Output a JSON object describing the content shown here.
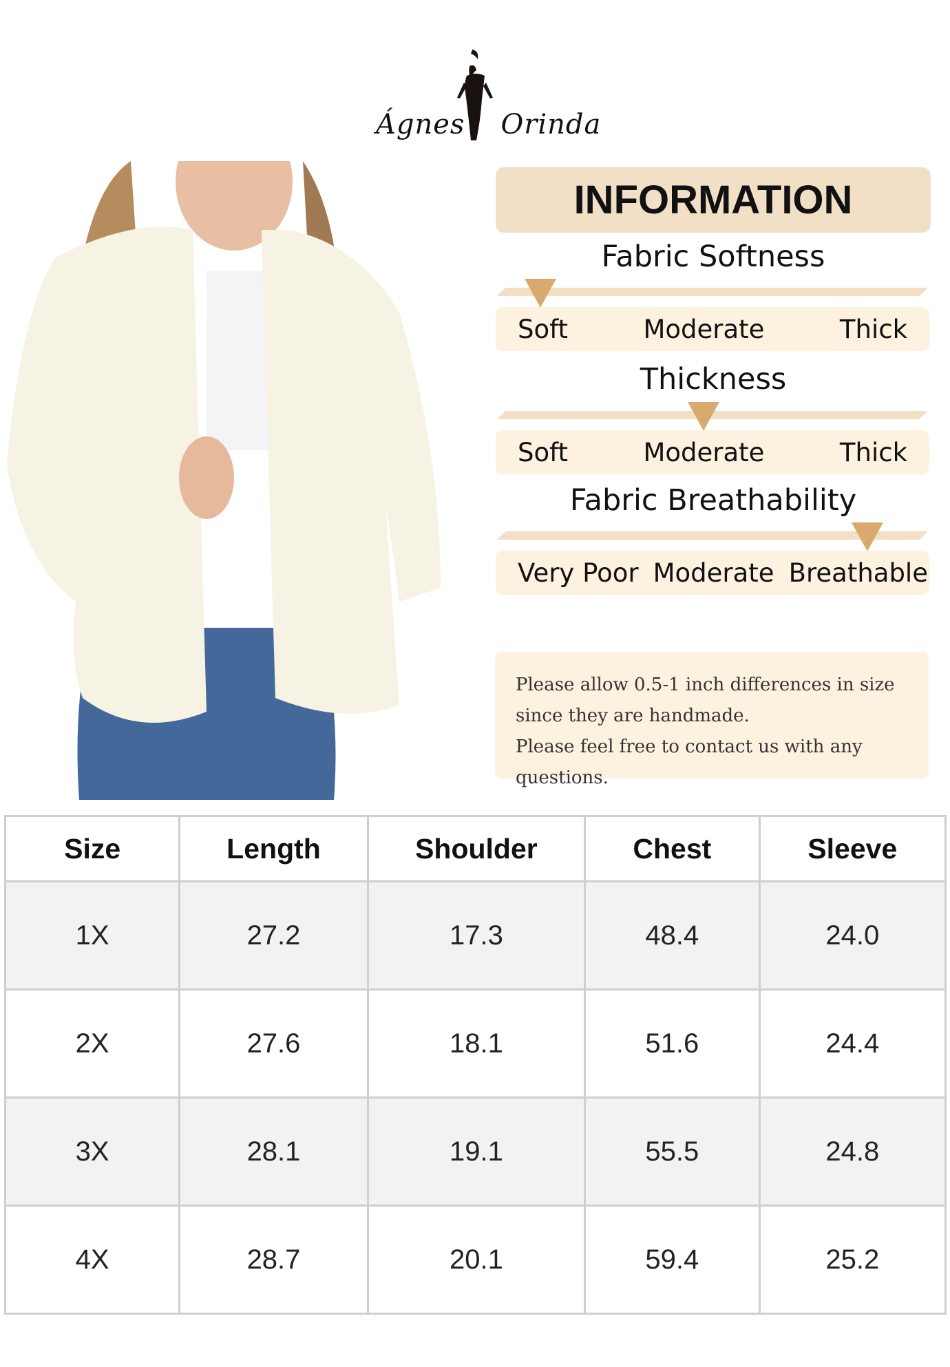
{
  "brand": {
    "logo_text_left": "Ágnes",
    "logo_text_right": "Orinda"
  },
  "info": {
    "title": "INFORMATION",
    "accent_color": "#d9aa6e",
    "scales": [
      {
        "title": "Fabric Softness",
        "labels": [
          "Soft",
          "Moderate",
          "Thick"
        ],
        "level": 0.1
      },
      {
        "title": "Thickness",
        "labels": [
          "Soft",
          "Moderate",
          "Thick"
        ],
        "level": 0.48
      },
      {
        "title": "Fabric Breathability",
        "labels": [
          "Very Poor",
          "Moderate",
          "Breathable"
        ],
        "level": 0.86
      }
    ]
  },
  "note": {
    "lines": [
      "Please allow 0.5-1 inch differences in size",
      "since they are handmade.",
      "Please feel free to contact us with any questions."
    ]
  },
  "size_table": {
    "headers": [
      "Size",
      "Length",
      "Shoulder",
      "Chest",
      "Sleeve"
    ],
    "rows": [
      [
        "1X",
        "27.2",
        "17.3",
        "48.4",
        "24.0"
      ],
      [
        "2X",
        "27.6",
        "18.1",
        "51.6",
        "24.4"
      ],
      [
        "3X",
        "28.1",
        "19.1",
        "55.5",
        "24.8"
      ],
      [
        "4X",
        "28.7",
        "20.1",
        "59.4",
        "25.2"
      ]
    ]
  }
}
